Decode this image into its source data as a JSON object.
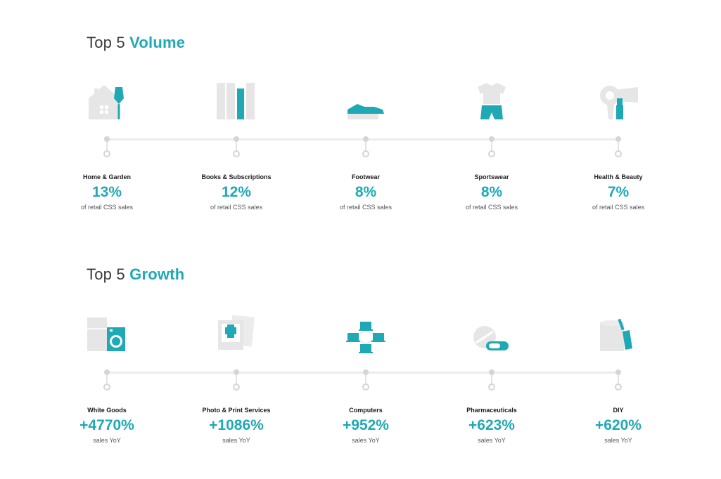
{
  "sections": [
    {
      "title_plain": "Top 5",
      "title_accent": "Volume",
      "items": [
        {
          "label": "Home & Garden",
          "value": "13%",
          "caption": "of retail CSS sales",
          "icon": "house-trowel-icon"
        },
        {
          "label": "Books & Subscriptions",
          "value": "12%",
          "caption": "of retail CSS sales",
          "icon": "books-icon"
        },
        {
          "label": "Footwear",
          "value": "8%",
          "caption": "of retail CSS sales",
          "icon": "shoe-icon"
        },
        {
          "label": "Sportswear",
          "value": "8%",
          "caption": "of retail CSS sales",
          "icon": "sportswear-icon"
        },
        {
          "label": "Health & Beauty",
          "value": "7%",
          "caption": "of retail CSS sales",
          "icon": "hairdryer-lipstick-icon"
        }
      ]
    },
    {
      "title_plain": "Top 5",
      "title_accent": "Growth",
      "items": [
        {
          "label": "White Goods",
          "value": "+4770%",
          "caption": "sales YoY",
          "icon": "fridge-washer-icon"
        },
        {
          "label": "Photo & Print Services",
          "value": "+1086%",
          "caption": "sales YoY",
          "icon": "photo-printer-icon"
        },
        {
          "label": "Computers",
          "value": "+952%",
          "caption": "sales YoY",
          "icon": "network-computers-icon"
        },
        {
          "label": "Pharmaceuticals",
          "value": "+623%",
          "caption": "sales YoY",
          "icon": "pills-icon"
        },
        {
          "label": "DIY",
          "value": "+620%",
          "caption": "sales YoY",
          "icon": "paint-roll-brush-icon"
        }
      ]
    }
  ],
  "colors": {
    "accent": "#1fa9b5",
    "icon_gray": "#e6e6e6",
    "line_gray": "#ececec"
  }
}
